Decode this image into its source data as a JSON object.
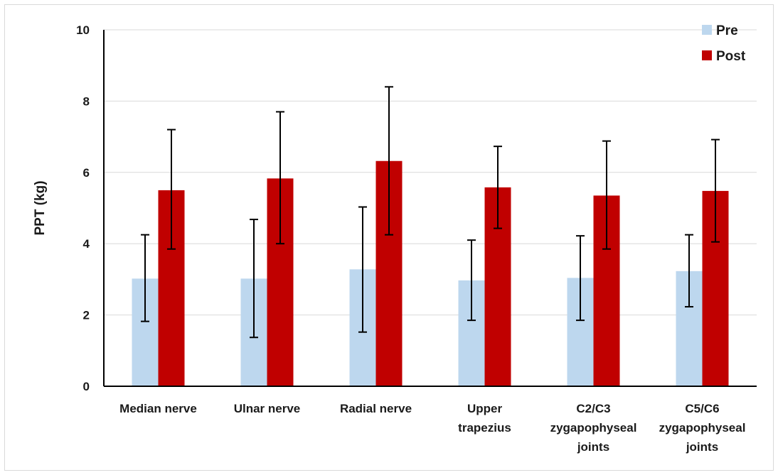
{
  "chart_data": {
    "type": "bar",
    "title": "",
    "xlabel": "",
    "ylabel": "PPT (kg)",
    "ylim": [
      0,
      10
    ],
    "yticks": [
      "0",
      "2",
      "4",
      "6",
      "8",
      "10"
    ],
    "grid": true,
    "legend_position": "top-right",
    "categories": [
      [
        "Median nerve"
      ],
      [
        "Ulnar nerve"
      ],
      [
        "Radial nerve"
      ],
      [
        "Upper",
        "trapezius"
      ],
      [
        "C2/C3",
        "zygapophyseal",
        "joints"
      ],
      [
        "C5/C6",
        "zygapophyseal",
        "joints"
      ]
    ],
    "series": [
      {
        "name": "Pre",
        "color": "#bdd7ee",
        "values": [
          3.02,
          3.02,
          3.28,
          2.97,
          3.04,
          3.23
        ],
        "error_low": [
          1.82,
          1.37,
          1.52,
          1.85,
          1.85,
          2.23
        ],
        "error_high": [
          4.25,
          4.68,
          5.03,
          4.1,
          4.22,
          4.25
        ]
      },
      {
        "name": "Post",
        "color": "#c00000",
        "values": [
          5.5,
          5.83,
          6.32,
          5.58,
          5.35,
          5.48
        ],
        "error_low": [
          3.85,
          4.0,
          4.25,
          4.43,
          3.85,
          4.05
        ],
        "error_high": [
          7.2,
          7.7,
          8.4,
          6.73,
          6.88,
          6.92
        ]
      }
    ]
  }
}
